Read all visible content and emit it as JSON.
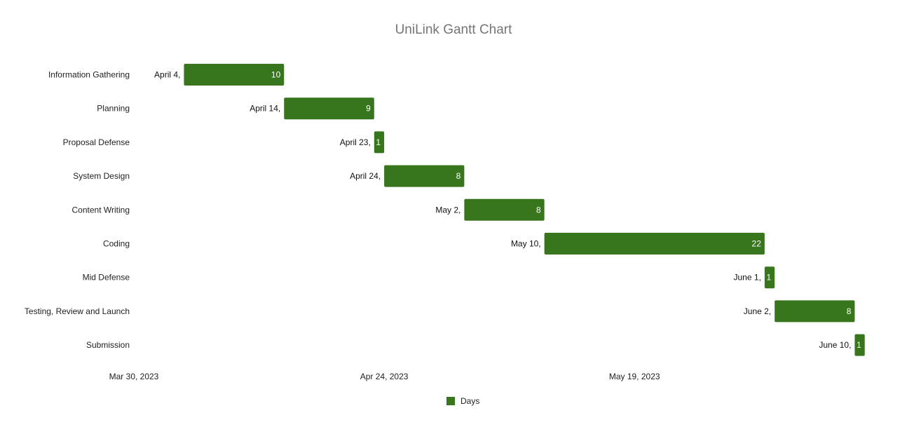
{
  "chart_data": {
    "type": "bar",
    "title": "UniLink Gantt Chart",
    "categories": [
      "Information Gathering",
      "Planning",
      "Proposal Defense",
      "System Design",
      "Content Writing",
      "Coding",
      "Mid Defense",
      "Testing, Review and Launch",
      "Submission"
    ],
    "start_labels": [
      "April 4,",
      "April 14,",
      "April 23,",
      "April 24,",
      "May 2,",
      "May 10,",
      "June 1,",
      "June 2,",
      "June 10,"
    ],
    "start_dates": [
      "2023-04-04",
      "2023-04-14",
      "2023-04-23",
      "2023-04-24",
      "2023-05-02",
      "2023-05-10",
      "2023-06-01",
      "2023-06-02",
      "2023-06-10"
    ],
    "series": [
      {
        "name": "Days",
        "values": [
          10,
          9,
          1,
          8,
          8,
          22,
          1,
          8,
          1
        ]
      }
    ],
    "x_ticks": [
      "Mar 30, 2023",
      "Apr 24, 2023",
      "May 19, 2023"
    ],
    "x_tick_dates": [
      "2023-03-30",
      "2023-04-24",
      "2023-05-19"
    ],
    "xlim": [
      "2023-03-30",
      "2023-06-12"
    ],
    "xlabel": "",
    "ylabel": "",
    "grid": false,
    "legend": "bottom",
    "bar_color": "#38761d"
  }
}
